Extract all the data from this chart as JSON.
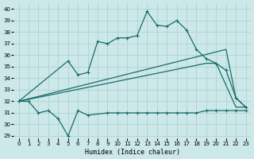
{
  "xlabel": "Humidex (Indice chaleur)",
  "xlim": [
    -0.5,
    23.5
  ],
  "ylim": [
    28.8,
    40.5
  ],
  "yticks": [
    29,
    30,
    31,
    32,
    33,
    34,
    35,
    36,
    37,
    38,
    39,
    40
  ],
  "xticks": [
    0,
    1,
    2,
    3,
    4,
    5,
    6,
    7,
    8,
    9,
    10,
    11,
    12,
    13,
    14,
    15,
    16,
    17,
    18,
    19,
    20,
    21,
    22,
    23
  ],
  "bg_color": "#cce8e8",
  "grid_color": "#aacfcf",
  "line_color": "#1a6b6b",
  "line_width": 0.9,
  "marker_size": 3.5,
  "line1_x": [
    0,
    5,
    6,
    7,
    8,
    9,
    10,
    11,
    12,
    13,
    14,
    15,
    16,
    17,
    18,
    19,
    20,
    21,
    22,
    23
  ],
  "line1_y": [
    32.0,
    35.5,
    34.3,
    34.5,
    37.2,
    37.0,
    37.5,
    37.5,
    37.7,
    39.8,
    38.6,
    38.5,
    39.0,
    38.2,
    36.5,
    35.7,
    35.3,
    34.7,
    32.3,
    31.5
  ],
  "line2_x": [
    0,
    21,
    22,
    23
  ],
  "line2_y": [
    32.0,
    36.5,
    32.3,
    31.5
  ],
  "line3_x": [
    0,
    19,
    20,
    22,
    23
  ],
  "line3_y": [
    32.0,
    35.3,
    35.3,
    31.5,
    31.5
  ],
  "line4_x": [
    0,
    1,
    2,
    3,
    4,
    5,
    6,
    7,
    9,
    10,
    11,
    12,
    13,
    14,
    15,
    16,
    17,
    18,
    19,
    20,
    21,
    22,
    23
  ],
  "line4_y": [
    32.0,
    32.0,
    31.0,
    31.2,
    30.5,
    29.0,
    31.2,
    30.8,
    31.0,
    31.0,
    31.0,
    31.0,
    31.0,
    31.0,
    31.0,
    31.0,
    31.0,
    31.0,
    31.2,
    31.2,
    31.2,
    31.2,
    31.2
  ]
}
